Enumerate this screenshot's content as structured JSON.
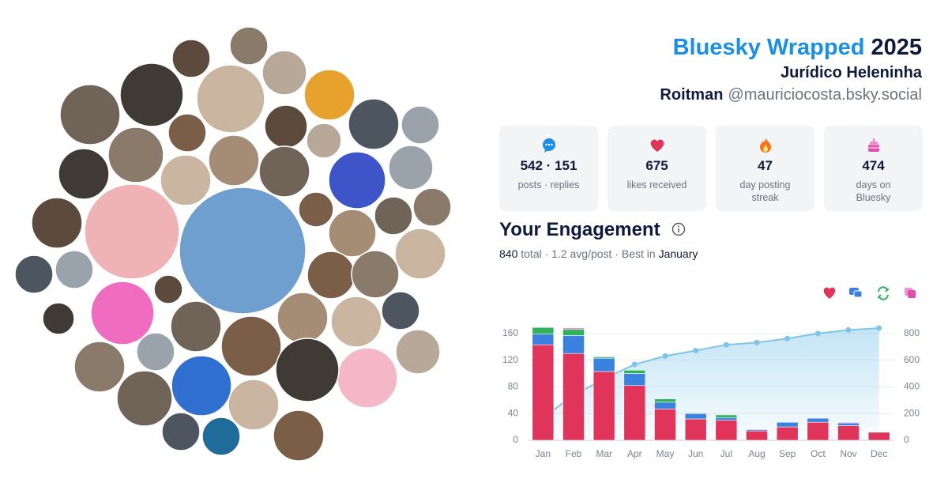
{
  "header": {
    "brand": "Bluesky Wrapped",
    "year": "2025",
    "name_line1": "Jurídico Heleninha",
    "name_line2": "Roitman",
    "handle": "@mauriciocosta.bsky.social"
  },
  "stats": [
    {
      "value": "542 · 151",
      "label": "posts · replies"
    },
    {
      "value": 675,
      "label": "likes received"
    },
    {
      "value": 47,
      "label": "day posting streak"
    },
    {
      "value": 474,
      "label": "days on Bluesky"
    }
  ],
  "engagement": {
    "title": "Your Engagement",
    "total": 840,
    "total_label": "total ·",
    "avg": "1.2 avg/post ·",
    "best_label": "Best in",
    "best_month": "January"
  },
  "chart_data": {
    "type": "bar",
    "stacked": true,
    "grid": true,
    "categories": [
      "Jan",
      "Feb",
      "Mar",
      "Apr",
      "May",
      "Jun",
      "Jul",
      "Aug",
      "Sep",
      "Oct",
      "Nov",
      "Dec"
    ],
    "ylim": [
      0,
      174
    ],
    "yticks": [
      0,
      40,
      80,
      120,
      160
    ],
    "y2lim": [
      0,
      870
    ],
    "y2ticks": [
      0,
      200,
      400,
      600,
      800
    ],
    "series": [
      {
        "color": "#e0345a",
        "values": [
          143,
          130,
          103,
          82,
          47,
          32,
          30,
          14,
          20,
          27,
          22,
          12
        ]
      },
      {
        "color": "#3b82e0",
        "values": [
          16,
          27,
          20,
          18,
          10,
          8,
          4,
          2,
          7,
          6,
          4,
          0
        ]
      },
      {
        "color": "#2fb35a",
        "values": [
          10,
          9,
          2,
          5,
          5,
          1,
          4,
          0,
          0,
          0,
          0,
          0
        ]
      },
      {
        "color": "#e04fb0",
        "values": [
          0,
          2,
          0,
          0,
          0,
          0,
          0,
          0,
          0,
          0,
          1,
          0
        ]
      },
      {
        "type": "line",
        "axis": "y2",
        "color": "#7cc4ea",
        "values": [
          169,
          336,
          461,
          568,
          631,
          672,
          715,
          732,
          762,
          800,
          826,
          840
        ]
      }
    ]
  }
}
